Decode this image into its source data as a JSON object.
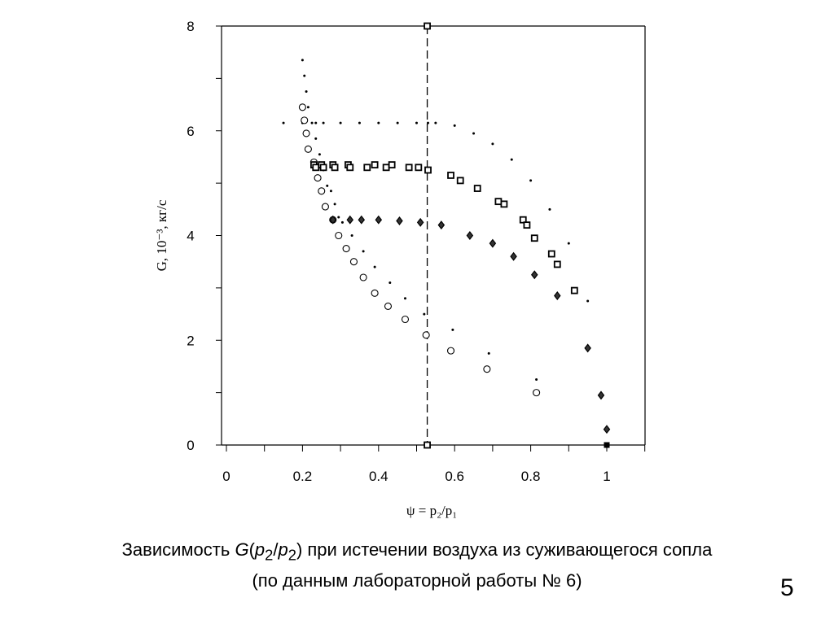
{
  "chart_data": {
    "type": "scatter",
    "title": "",
    "xlabel": "ψ = p₂/p₁",
    "ylabel": "G, 10⁻³, кг/с",
    "xlim": [
      0,
      1.1
    ],
    "ylim": [
      0,
      8
    ],
    "x_ticks": [
      0,
      0.2,
      0.4,
      0.6,
      0.8,
      1
    ],
    "x_tick_labels": [
      "0",
      "0.2",
      "0.4",
      "0.6",
      "0.8",
      "1"
    ],
    "y_ticks": [
      0,
      2,
      4,
      6,
      8
    ],
    "y_tick_labels": [
      "0",
      "2",
      "4",
      "6",
      "8"
    ],
    "grid": false,
    "vertical_reference_line": {
      "x": 0.528,
      "style": "dashed"
    },
    "series": [
      {
        "marker": "dot",
        "x": [
          0.2,
          0.205,
          0.21,
          0.215,
          0.225,
          0.235,
          0.245,
          0.255,
          0.265,
          0.275,
          0.285,
          0.295,
          0.305,
          0.33,
          0.36,
          0.39,
          0.43,
          0.47,
          0.52
        ],
        "y": [
          7.35,
          7.05,
          6.75,
          6.45,
          6.15,
          5.85,
          5.55,
          5.25,
          4.95,
          4.85,
          4.6,
          4.35,
          4.25,
          4.0,
          3.7,
          3.4,
          3.1,
          2.8,
          2.5
        ]
      },
      {
        "marker": "dot",
        "x": [
          0.15,
          0.2,
          0.235,
          0.255,
          0.3,
          0.35,
          0.4,
          0.45,
          0.5,
          0.53,
          0.55,
          0.6,
          0.65,
          0.7,
          0.75,
          0.8,
          0.85,
          0.9,
          0.95
        ],
        "y": [
          6.15,
          6.15,
          6.15,
          6.15,
          6.15,
          6.15,
          6.15,
          6.15,
          6.15,
          6.15,
          6.15,
          6.1,
          5.95,
          5.75,
          5.45,
          5.05,
          4.5,
          3.85,
          2.75
        ]
      },
      {
        "marker": "dot",
        "x": [
          0.595,
          0.69,
          0.815
        ],
        "y": [
          2.2,
          1.75,
          1.25
        ]
      },
      {
        "marker": "circle",
        "x": [
          0.2,
          0.205,
          0.21,
          0.215,
          0.23,
          0.24,
          0.25,
          0.26,
          0.28,
          0.295,
          0.315,
          0.335,
          0.36,
          0.39,
          0.425,
          0.47,
          0.525,
          0.59,
          0.685,
          0.815
        ],
        "y": [
          6.45,
          6.2,
          5.95,
          5.65,
          5.4,
          5.1,
          4.85,
          4.55,
          4.3,
          4.0,
          3.75,
          3.5,
          3.2,
          2.9,
          2.65,
          2.4,
          2.1,
          1.8,
          1.45,
          1.0
        ]
      },
      {
        "marker": "square",
        "x": [
          0.23,
          0.235,
          0.25,
          0.255,
          0.28,
          0.285,
          0.32,
          0.325,
          0.37,
          0.39,
          0.42,
          0.435,
          0.48,
          0.505,
          0.53,
          0.59,
          0.615,
          0.66,
          0.715,
          0.73,
          0.78,
          0.79,
          0.81,
          0.855,
          0.87,
          0.915
        ],
        "y": [
          5.35,
          5.3,
          5.35,
          5.3,
          5.35,
          5.3,
          5.35,
          5.3,
          5.3,
          5.35,
          5.3,
          5.35,
          5.3,
          5.3,
          5.25,
          5.15,
          5.05,
          4.9,
          4.65,
          4.6,
          4.3,
          4.2,
          3.95,
          3.65,
          3.45,
          2.95
        ]
      },
      {
        "marker": "diamond",
        "x": [
          0.28,
          0.325,
          0.355,
          0.4,
          0.455,
          0.51,
          0.565,
          0.64,
          0.7,
          0.755,
          0.81,
          0.87,
          0.95,
          0.985,
          1.0
        ],
        "y": [
          4.3,
          4.3,
          4.3,
          4.3,
          4.28,
          4.25,
          4.2,
          4.0,
          3.85,
          3.6,
          3.25,
          2.85,
          1.85,
          0.95,
          0.3
        ]
      },
      {
        "marker": "filled-square",
        "x": [
          1.0
        ],
        "y": [
          0.0
        ]
      },
      {
        "marker": "square",
        "x": [
          0.528,
          0.528
        ],
        "y": [
          8.0,
          0.0
        ]
      }
    ]
  },
  "caption": {
    "prefix": "Зависимость ",
    "g_symbol": "G",
    "paren_open": "(",
    "p_a": "p",
    "sub_a": "2",
    "slash": "/",
    "p_b": "p",
    "sub_b": "2",
    "rest": ") при истечении воздуха из суживающегося сопла",
    "line2": "(по данным лабораторной работы № 6)"
  },
  "slide_number": "5"
}
